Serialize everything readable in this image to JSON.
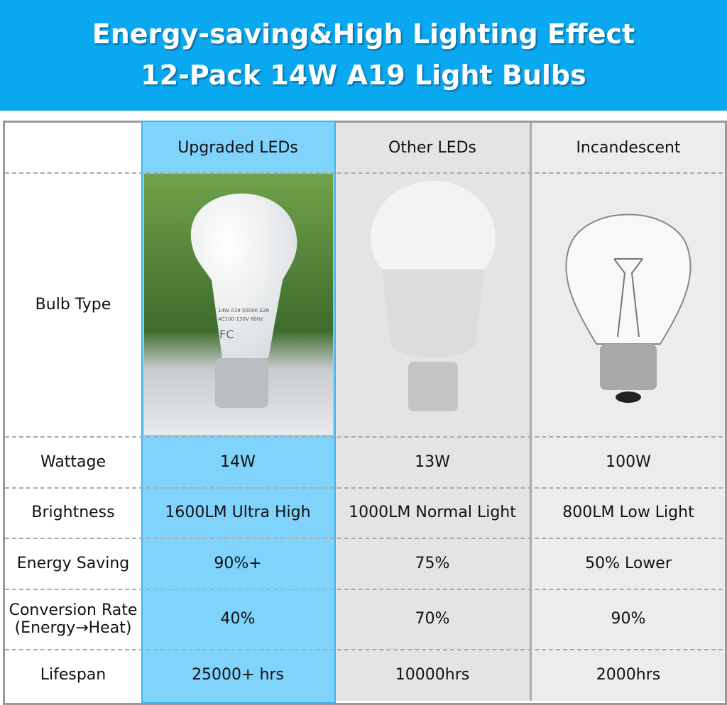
{
  "header": {
    "title_lines": [
      "Energy-saving&High Lighting Effect",
      "12-Pack 14W A19 Light Bulbs"
    ]
  },
  "table": {
    "columns": [
      "Upgraded LEDs",
      "Other LEDs",
      "Incandescent"
    ],
    "bulb_row_label": "Bulb Type",
    "bulb_print": [
      "14W A19 5000K E26",
      "AC100-130V 60Hz",
      "FC"
    ],
    "rows": [
      {
        "label": [
          "Wattage"
        ],
        "cells": [
          "14W",
          "13W",
          "100W"
        ]
      },
      {
        "label": [
          "Brightness"
        ],
        "cells": [
          "1600LM Ultra High",
          "1000LM Normal Light",
          "800LM Low Light"
        ]
      },
      {
        "label": [
          "Energy Saving"
        ],
        "cells": [
          "90%+",
          "75%",
          "50% Lower"
        ]
      },
      {
        "label": [
          "Conversion Rate",
          "(Energy→Heat)"
        ],
        "cells": [
          "40%",
          "70%",
          "90%"
        ]
      },
      {
        "label": [
          "Lifespan"
        ],
        "cells": [
          "25000+ hrs",
          "10000hrs",
          "2000hrs"
        ]
      }
    ]
  }
}
